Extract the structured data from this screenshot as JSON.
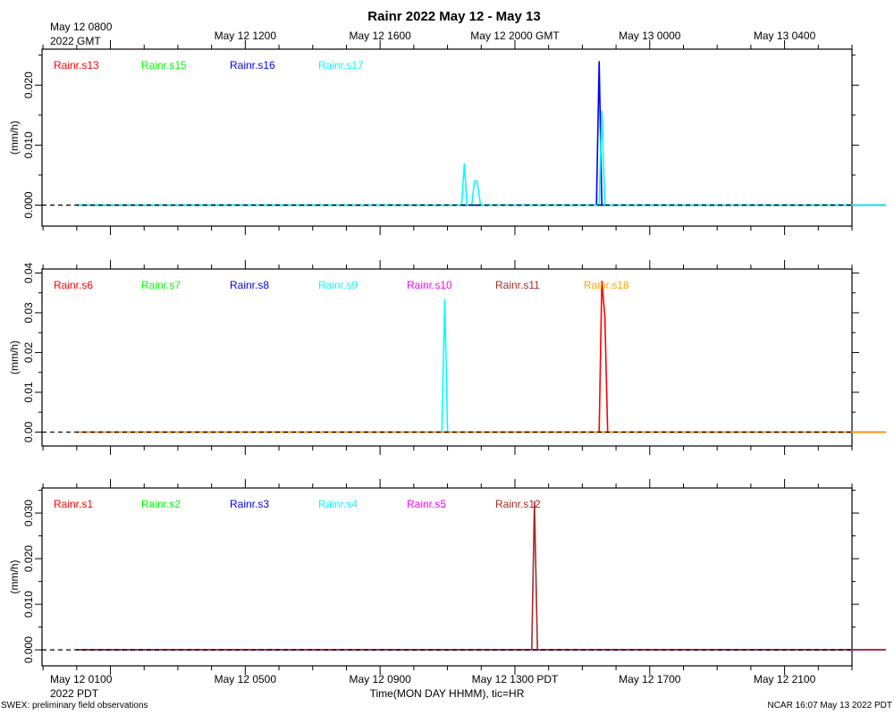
{
  "title": "Rainr 2022 May 12 - May 13",
  "top_axis": {
    "first_label": [
      "May 12 0800",
      "2022 GMT"
    ],
    "labels": [
      "May 12 1200",
      "May 12 1600",
      "May 12 2000 GMT",
      "May 13 0000",
      "May 13 0400"
    ]
  },
  "bottom_axis": {
    "first_label": [
      "May 12 0100",
      "2022 PDT"
    ],
    "labels": [
      "May 12 0500",
      "May 12 0900",
      "May 12 1300 PDT",
      "May 12 1700",
      "May 12 2100"
    ],
    "xlabel": "Time(MON DAY HHMM), tic=HR"
  },
  "footer": {
    "left": "SWEX: preliminary field observations",
    "right": "NCAR 16:07 May 13 2022 PDT"
  },
  "chart_data": [
    {
      "type": "line",
      "x_units": "hours since May 12 0000 PDT",
      "xlim": [
        0,
        24
      ],
      "ylim": [
        -0.0035,
        0.026
      ],
      "ylabel": "(mm/h)",
      "yticks": [
        "0.000",
        "0.010",
        "0.020"
      ],
      "yticks_values": [
        0,
        0.01,
        0.02
      ],
      "series": [
        {
          "name": "Rainr.s13",
          "color": "#ff0000",
          "x": [
            0,
            24
          ],
          "y": [
            0,
            0
          ]
        },
        {
          "name": "Rainr.s15",
          "color": "#00ff00",
          "x": [
            0,
            24
          ],
          "y": [
            0,
            0
          ]
        },
        {
          "name": "Rainr.s16",
          "color": "#0000ff",
          "x": [
            0,
            15.42,
            15.5,
            15.58,
            24
          ],
          "y": [
            0,
            0,
            0.024,
            0,
            0
          ]
        },
        {
          "name": "Rainr.s17",
          "color": "#00ffff",
          "x": [
            0,
            11.42,
            11.5,
            11.58,
            11.72,
            11.8,
            11.88,
            11.98,
            15.5,
            15.58,
            15.67,
            24
          ],
          "y": [
            0,
            0,
            0.007,
            0,
            0,
            0.004,
            0.004,
            0,
            0,
            0.0158,
            0,
            0
          ]
        }
      ]
    },
    {
      "type": "line",
      "x_units": "hours since May 12 0000 PDT",
      "xlim": [
        0,
        24
      ],
      "ylim": [
        -0.0035,
        0.041
      ],
      "ylabel": "(mm/h)",
      "yticks": [
        "0.00",
        "0.01",
        "0.02",
        "0.03",
        "0.04"
      ],
      "yticks_values": [
        0,
        0.01,
        0.02,
        0.03,
        0.04
      ],
      "series": [
        {
          "name": "Rainr.s6",
          "color": "#ff0000",
          "x": [
            0,
            15.5,
            15.58,
            15.67,
            15.75,
            24
          ],
          "y": [
            0,
            0,
            0.038,
            0.029,
            0,
            0
          ]
        },
        {
          "name": "Rainr.s7",
          "color": "#00ff00",
          "x": [
            0,
            24
          ],
          "y": [
            0,
            0
          ]
        },
        {
          "name": "Rainr.s8",
          "color": "#0000ff",
          "x": [
            0,
            24
          ],
          "y": [
            0,
            0
          ]
        },
        {
          "name": "Rainr.s9",
          "color": "#00ffff",
          "x": [
            0,
            10.83,
            10.92,
            11.0,
            24
          ],
          "y": [
            0,
            0,
            0.0335,
            0,
            0
          ]
        },
        {
          "name": "Rainr.s10",
          "color": "#ff00ff",
          "x": [
            0,
            24
          ],
          "y": [
            0,
            0
          ]
        },
        {
          "name": "Rainr.s11",
          "color": "#a52a2a",
          "x": [
            0,
            24
          ],
          "y": [
            0,
            0
          ]
        },
        {
          "name": "Rainr.s18",
          "color": "#ffa500",
          "x": [
            0,
            24
          ],
          "y": [
            0,
            0
          ]
        }
      ]
    },
    {
      "type": "line",
      "x_units": "hours since May 12 0000 PDT",
      "xlim": [
        0,
        24
      ],
      "ylim": [
        -0.0035,
        0.0355
      ],
      "ylabel": "(mm/h)",
      "yticks": [
        "0.000",
        "0.010",
        "0.020",
        "0.030"
      ],
      "yticks_values": [
        0,
        0.01,
        0.02,
        0.03
      ],
      "series": [
        {
          "name": "Rainr.s1",
          "color": "#ff0000",
          "x": [
            0,
            24
          ],
          "y": [
            0,
            0
          ]
        },
        {
          "name": "Rainr.s2",
          "color": "#00ff00",
          "x": [
            0,
            24
          ],
          "y": [
            0,
            0
          ]
        },
        {
          "name": "Rainr.s3",
          "color": "#0000ff",
          "x": [
            0,
            24
          ],
          "y": [
            0,
            0
          ]
        },
        {
          "name": "Rainr.s4",
          "color": "#00ffff",
          "x": [
            0,
            24
          ],
          "y": [
            0,
            0
          ]
        },
        {
          "name": "Rainr.s5",
          "color": "#ff00ff",
          "x": [
            0,
            24
          ],
          "y": [
            0,
            0
          ]
        },
        {
          "name": "Rainr.s12",
          "color": "#a52a2a",
          "x": [
            0,
            13.5,
            13.58,
            13.67,
            24
          ],
          "y": [
            0,
            0,
            0.0325,
            0,
            0
          ]
        }
      ]
    }
  ]
}
